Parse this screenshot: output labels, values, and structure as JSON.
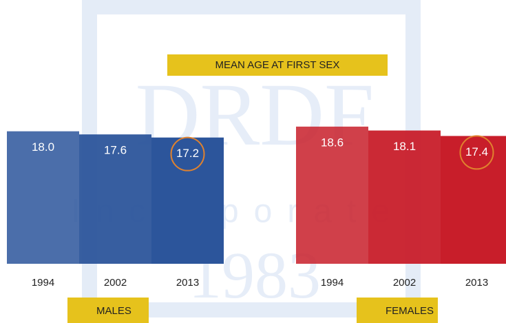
{
  "chart_data": {
    "type": "bar",
    "title": "MEAN AGE AT FIRST SEX",
    "watermark": [
      "DRDF",
      "Incorporated",
      "1983"
    ],
    "categories": [
      "1994",
      "2002",
      "2013"
    ],
    "series": [
      {
        "name": "MALES",
        "color": "#2c559b",
        "values": [
          18.0,
          17.6,
          17.2
        ],
        "value_labels": [
          "18.0",
          "17.6",
          "17.2"
        ]
      },
      {
        "name": "FEMALES",
        "color": "#c81e2a",
        "values": [
          18.6,
          18.1,
          17.4
        ],
        "value_labels": [
          "18.6",
          "18.1",
          "17.4"
        ]
      }
    ],
    "ylim": [
      1,
      20
    ],
    "highlight_color": "#e0822e",
    "label_box_color": "#e6c21c"
  }
}
